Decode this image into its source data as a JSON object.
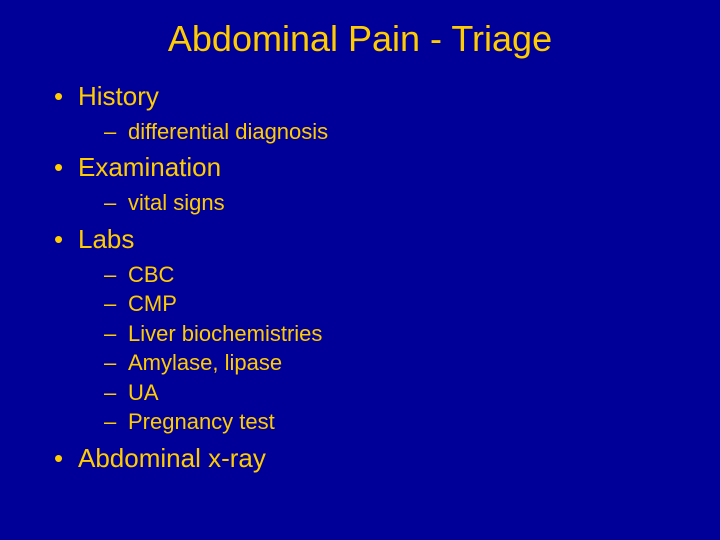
{
  "colors": {
    "background": "#000099",
    "text": "#ffcc00"
  },
  "typography": {
    "font_family": "Arial",
    "title_fontsize": 36,
    "level1_fontsize": 26,
    "level2_fontsize": 22
  },
  "title": "Abdominal Pain - Triage",
  "items": [
    {
      "label": "History",
      "subitems": [
        "differential diagnosis"
      ]
    },
    {
      "label": "Examination",
      "subitems": [
        "vital signs"
      ]
    },
    {
      "label": "Labs",
      "subitems": [
        "CBC",
        "CMP",
        "Liver biochemistries",
        "Amylase, lipase",
        "UA",
        "Pregnancy test"
      ]
    },
    {
      "label": "Abdominal x-ray",
      "subitems": []
    }
  ]
}
